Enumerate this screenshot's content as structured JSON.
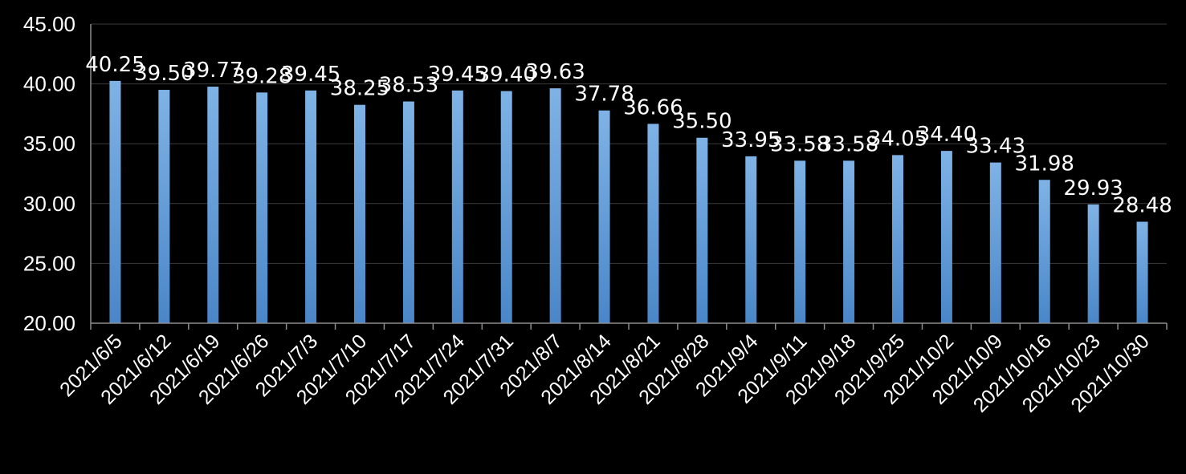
{
  "chart_data": {
    "type": "bar",
    "title": "",
    "xlabel": "",
    "ylabel": "",
    "ylim": [
      20,
      45
    ],
    "yticks": [
      "20.00",
      "25.00",
      "30.00",
      "35.00",
      "40.00",
      "45.00"
    ],
    "grid": true,
    "legend": "none",
    "bar_color_top": "#7fb3e6",
    "bar_color_bottom": "#4a86c8",
    "categories": [
      "2021/6/5",
      "2021/6/12",
      "2021/6/19",
      "2021/6/26",
      "2021/7/3",
      "2021/7/10",
      "2021/7/17",
      "2021/7/24",
      "2021/7/31",
      "2021/8/7",
      "2021/8/14",
      "2021/8/21",
      "2021/8/28",
      "2021/9/4",
      "2021/9/11",
      "2021/9/18",
      "2021/9/25",
      "2021/10/2",
      "2021/10/9",
      "2021/10/16",
      "2021/10/23",
      "2021/10/30"
    ],
    "values": [
      40.25,
      39.5,
      39.77,
      39.28,
      39.45,
      38.25,
      38.53,
      39.45,
      39.4,
      39.63,
      37.78,
      36.66,
      35.5,
      33.95,
      33.58,
      33.58,
      34.05,
      34.4,
      33.43,
      31.98,
      29.93,
      28.48
    ],
    "value_labels": [
      "40.25",
      "39.50",
      "39.77",
      "39.28",
      "39.45",
      "38.25",
      "38.53",
      "39.45",
      "39.40",
      "39.63",
      "37.78",
      "36.66",
      "35.50",
      "33.95",
      "33.58",
      "33.58",
      "34.05",
      "34.40",
      "33.43",
      "31.98",
      "29.93",
      "28.48"
    ]
  }
}
